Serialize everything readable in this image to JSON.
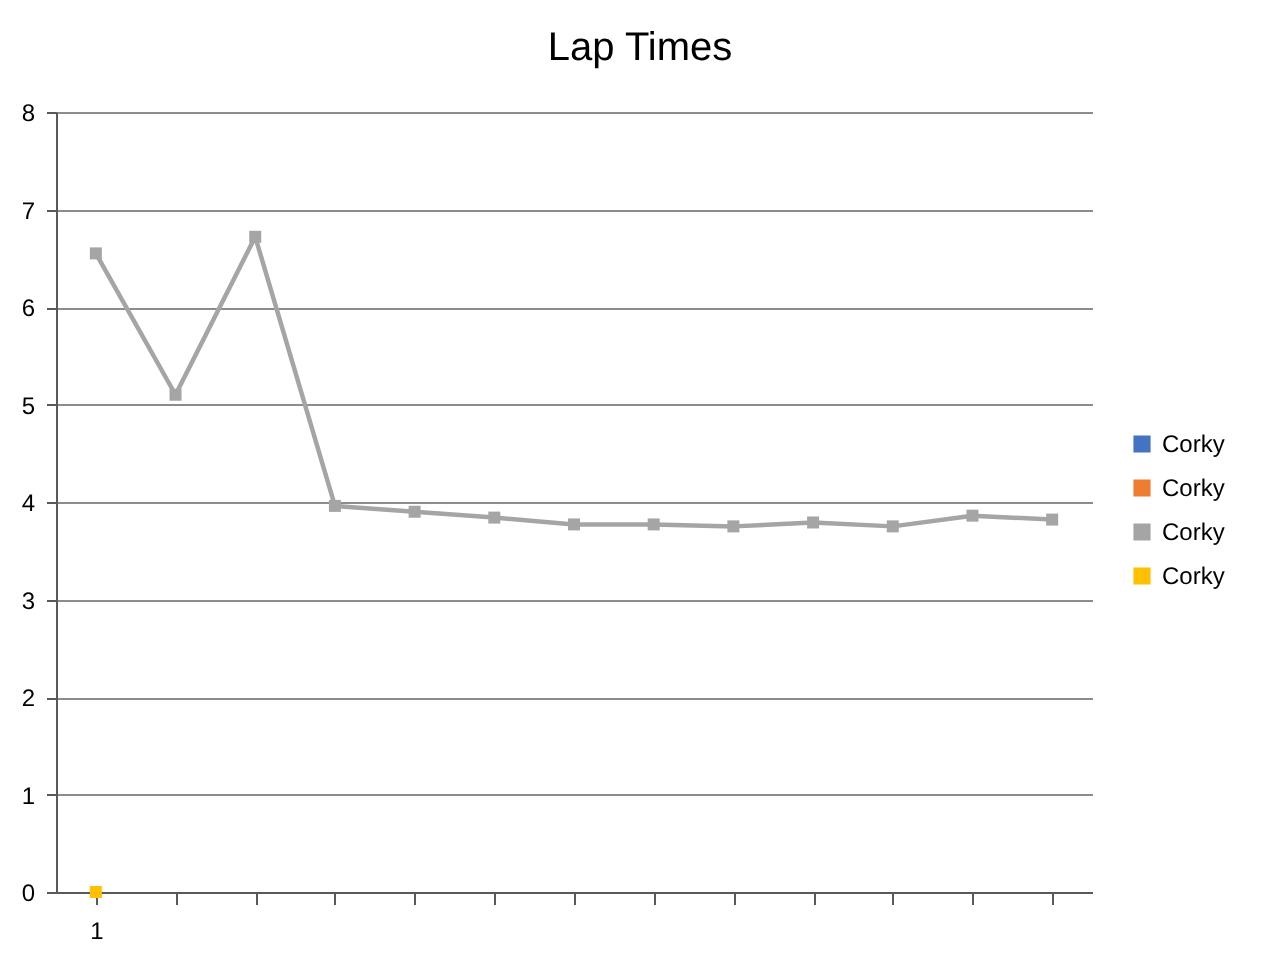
{
  "chart_data": {
    "type": "line",
    "title": "Lap Times",
    "categories": [
      "1",
      null,
      null,
      null,
      null,
      null,
      null,
      null,
      null,
      null,
      null,
      null,
      null
    ],
    "series": [
      {
        "name": "Corky",
        "color": "#4472c4",
        "values": [
          null,
          null,
          null,
          null,
          null,
          null,
          null,
          null,
          null,
          null,
          null,
          null,
          null
        ]
      },
      {
        "name": "Corky",
        "color": "#ed7d31",
        "values": [
          null,
          null,
          null,
          null,
          null,
          null,
          null,
          null,
          null,
          null,
          null,
          null,
          null
        ]
      },
      {
        "name": "Corky",
        "color": "#a5a5a5",
        "values": [
          6.55,
          5.1,
          6.72,
          3.96,
          3.9,
          3.84,
          3.77,
          3.77,
          3.75,
          3.79,
          3.75,
          3.86,
          3.82
        ]
      },
      {
        "name": "Corky",
        "color": "#ffc000",
        "values": [
          0,
          null,
          null,
          null,
          null,
          null,
          null,
          null,
          null,
          null,
          null,
          null,
          null
        ]
      }
    ],
    "ylim": [
      0,
      8
    ],
    "yticks": [
      0,
      1,
      2,
      3,
      4,
      5,
      6,
      7,
      8
    ],
    "grid": "y",
    "legend": "right",
    "marker": "square"
  }
}
